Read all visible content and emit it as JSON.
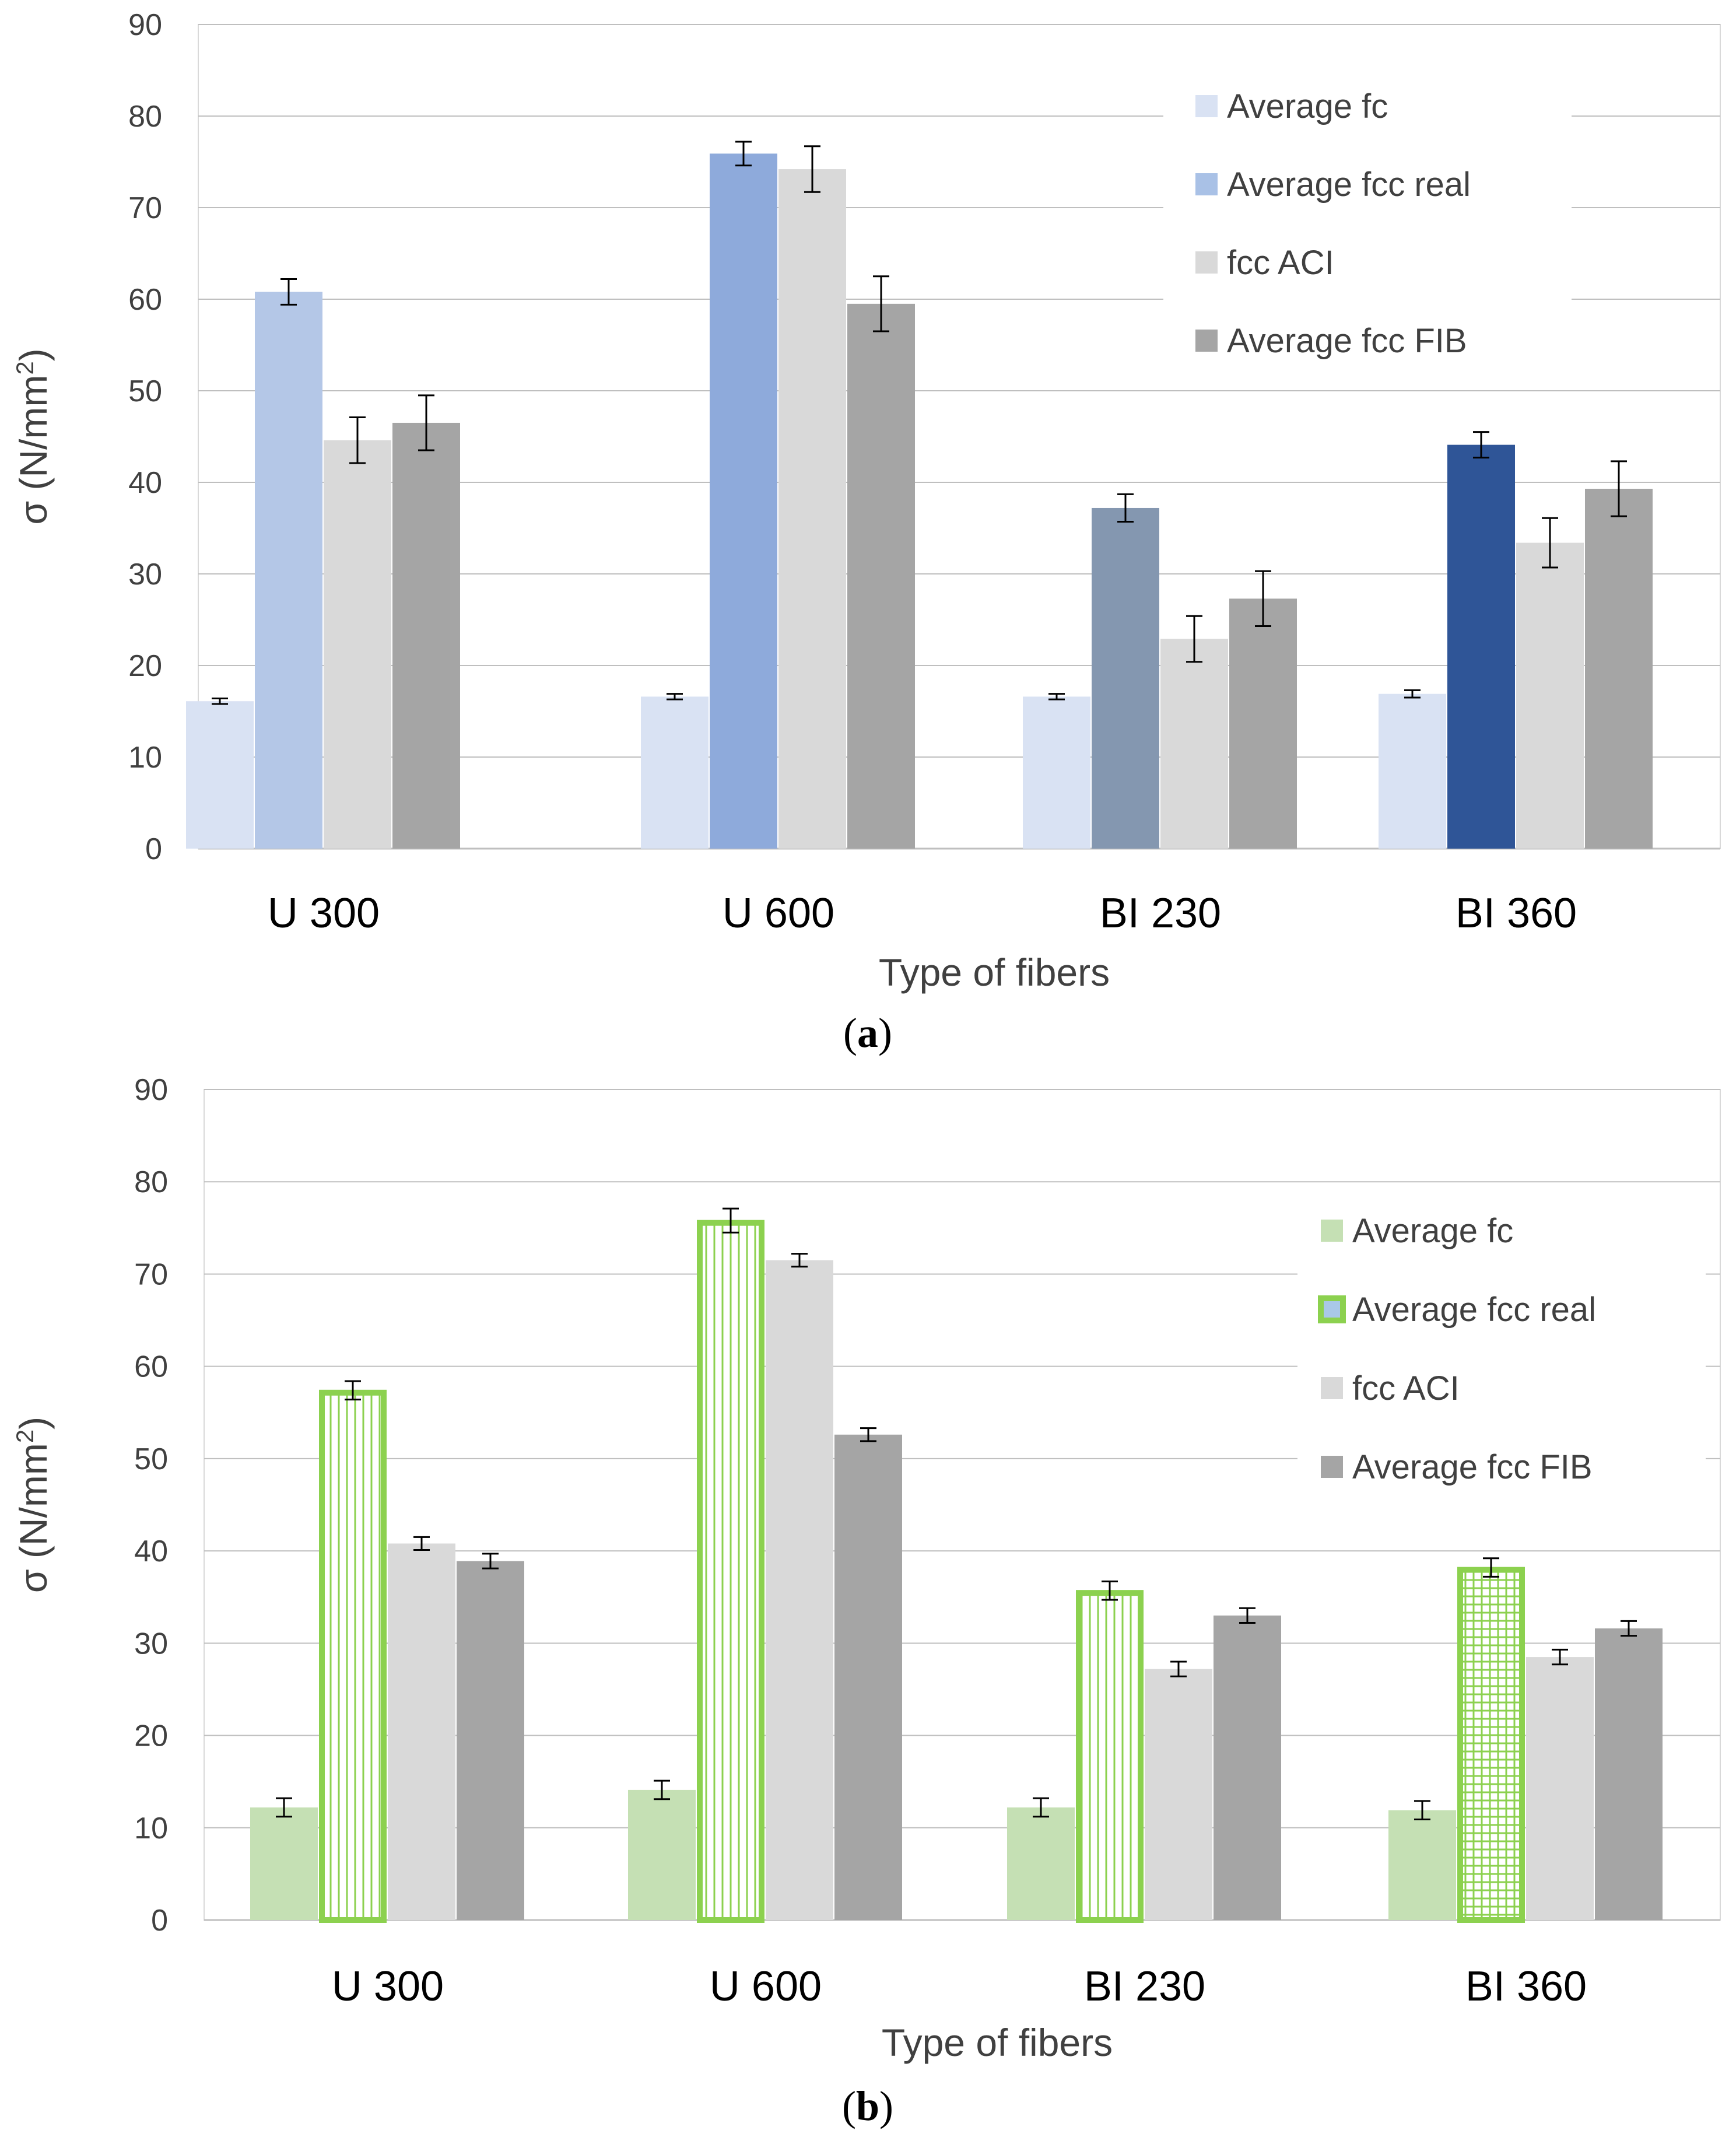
{
  "chart_data": [
    {
      "panel_label": "a",
      "type": "bar",
      "ylabel": "σ (N/mm",
      "ylabel_sup": "2",
      "ylabel_close": ")",
      "xlabel": "Type of fibers",
      "ylim": [
        0,
        90
      ],
      "ytick_labels": [
        "0",
        "10",
        "20",
        "30",
        "40",
        "50",
        "60",
        "70",
        "80",
        "90"
      ],
      "categories": [
        "U 300",
        "U 600",
        "BI 230",
        "BI 360"
      ],
      "legend": [
        "Average fc",
        "Average fcc real",
        "fcc ACI",
        "Average fcc FIB"
      ],
      "legend_colors": [
        "#d9e2f3",
        "#a9c1e6",
        "#d9d9d9",
        "#a5a5a5"
      ],
      "series": [
        {
          "name": "Average fc",
          "values": [
            16.1,
            16.6,
            16.6,
            16.9
          ],
          "errors": [
            0.3,
            0.3,
            0.3,
            0.4
          ],
          "colors": [
            "#d9e2f3",
            "#d9e2f3",
            "#d9e2f3",
            "#d9e2f3"
          ]
        },
        {
          "name": "Average fcc real",
          "values": [
            60.8,
            75.9,
            37.2,
            44.1
          ],
          "errors": [
            1.4,
            1.3,
            1.5,
            1.4
          ],
          "colors": [
            "#b4c7e7",
            "#8eaadb",
            "#8497b0",
            "#2f5597"
          ]
        },
        {
          "name": "fcc ACI",
          "values": [
            44.6,
            74.2,
            22.9,
            33.4
          ],
          "errors": [
            2.5,
            2.5,
            2.5,
            2.7
          ],
          "colors": [
            "#d9d9d9",
            "#d9d9d9",
            "#d9d9d9",
            "#d9d9d9"
          ]
        },
        {
          "name": "Average fcc FIB",
          "values": [
            46.5,
            59.5,
            27.3,
            39.3
          ],
          "errors": [
            3.0,
            3.0,
            3.0,
            3.0
          ],
          "colors": [
            "#a5a5a5",
            "#a5a5a5",
            "#a5a5a5",
            "#a5a5a5"
          ]
        }
      ]
    },
    {
      "panel_label": "b",
      "type": "bar",
      "ylabel": "σ (N/mm",
      "ylabel_sup": "2",
      "ylabel_close": ")",
      "xlabel": "Type of fibers",
      "ylim": [
        0,
        90
      ],
      "ytick_labels": [
        "0",
        "10",
        "20",
        "30",
        "40",
        "50",
        "60",
        "70",
        "80",
        "90"
      ],
      "categories": [
        "U 300",
        "U 600",
        "BI 230",
        "BI 360"
      ],
      "legend": [
        "Average fc",
        "Average fcc real",
        "fcc ACI",
        "Average fcc FIB"
      ],
      "legend_colors": [
        "#c5e0b4",
        "#8cd14f",
        "#d9d9d9",
        "#a5a5a5"
      ],
      "series": [
        {
          "name": "Average fc",
          "values": [
            12.2,
            14.1,
            12.2,
            11.9
          ],
          "errors": [
            1.0,
            1.0,
            1.0,
            1.0
          ],
          "colors": [
            "#c5e0b4",
            "#c5e0b4",
            "#c5e0b4",
            "#c5e0b4"
          ]
        },
        {
          "name": "Average fcc real",
          "values": [
            57.4,
            75.8,
            35.7,
            38.2
          ],
          "errors": [
            1.0,
            1.3,
            1.0,
            1.0
          ],
          "colors": [
            "#8cd14f",
            "#8cd14f",
            "#8cd14f",
            "#8cd14f"
          ],
          "patterns": [
            "vertical",
            "vertical",
            "vertical",
            "grid"
          ]
        },
        {
          "name": "fcc ACI",
          "values": [
            40.8,
            71.5,
            27.2,
            28.5
          ],
          "errors": [
            0.7,
            0.7,
            0.8,
            0.8
          ],
          "colors": [
            "#d9d9d9",
            "#d9d9d9",
            "#d9d9d9",
            "#d9d9d9"
          ]
        },
        {
          "name": "Average fcc FIB",
          "values": [
            38.9,
            52.6,
            33.0,
            31.6
          ],
          "errors": [
            0.8,
            0.7,
            0.8,
            0.8
          ],
          "colors": [
            "#a5a5a5",
            "#a5a5a5",
            "#a5a5a5",
            "#a5a5a5"
          ]
        }
      ]
    }
  ]
}
